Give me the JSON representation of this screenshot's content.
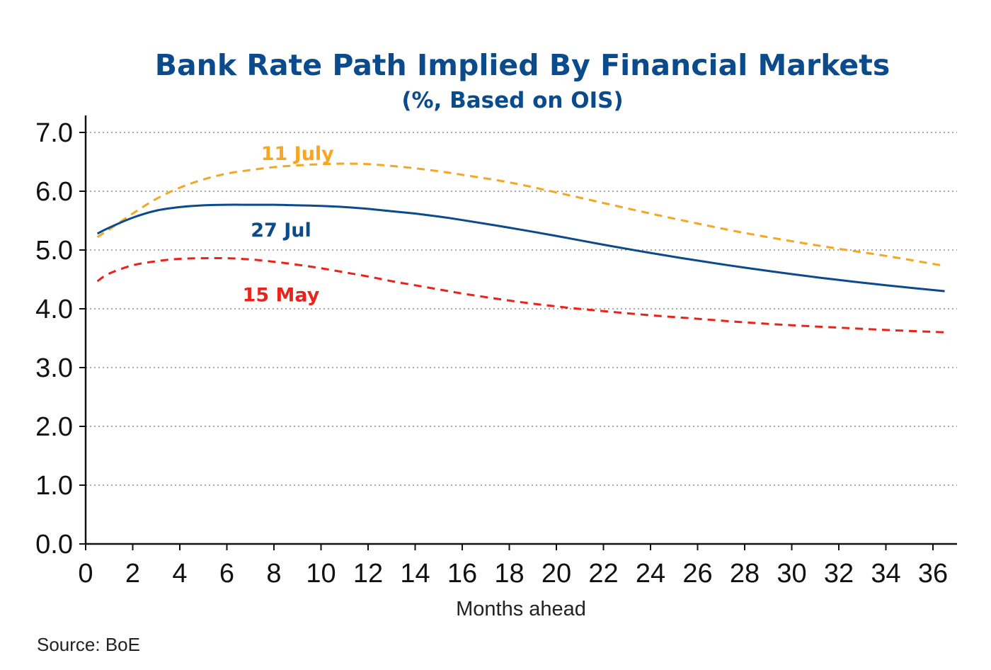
{
  "chart_data": {
    "type": "line",
    "title": "Bank Rate Path Implied By Financial Markets",
    "subtitle": "(%, Based on OIS)",
    "xlabel": "Months ahead",
    "ylabel": "",
    "xlim": [
      0,
      37
    ],
    "ylim": [
      0,
      7.3
    ],
    "x_ticks": [
      0,
      2,
      4,
      6,
      8,
      10,
      12,
      14,
      16,
      18,
      20,
      22,
      24,
      26,
      28,
      30,
      32,
      34,
      36
    ],
    "y_ticks": [
      0,
      1,
      2,
      3,
      4,
      5,
      6,
      7
    ],
    "y_tick_labels": [
      "0.0",
      "1.0",
      "2.0",
      "3.0",
      "4.0",
      "5.0",
      "6.0",
      "7.0"
    ],
    "grid": "horizontal-dotted",
    "source": "Source: BoE",
    "series": [
      {
        "name": "11 July",
        "color": "#f5a623",
        "style": "dashed",
        "label_anchor": {
          "x": 9.0,
          "y": 6.65
        },
        "x": [
          0.5,
          1,
          2,
          3,
          4,
          5,
          6,
          7,
          8,
          9,
          10,
          11,
          12,
          13,
          14,
          15,
          16,
          18,
          20,
          22,
          24,
          26,
          28,
          30,
          32,
          34,
          36.5
        ],
        "y": [
          5.22,
          5.35,
          5.62,
          5.87,
          6.06,
          6.2,
          6.3,
          6.36,
          6.41,
          6.44,
          6.46,
          6.47,
          6.46,
          6.43,
          6.39,
          6.34,
          6.28,
          6.15,
          5.98,
          5.8,
          5.62,
          5.45,
          5.29,
          5.15,
          5.02,
          4.9,
          4.73
        ]
      },
      {
        "name": "27 Jul",
        "color": "#0b4a8b",
        "style": "solid",
        "label_anchor": {
          "x": 8.3,
          "y": 5.35
        },
        "x": [
          0.5,
          1,
          2,
          3,
          4,
          5,
          6,
          7,
          8,
          9,
          10,
          11,
          12,
          13,
          14,
          15,
          16,
          18,
          20,
          22,
          24,
          26,
          28,
          30,
          32,
          34,
          36.5
        ],
        "y": [
          5.28,
          5.38,
          5.55,
          5.67,
          5.73,
          5.76,
          5.77,
          5.77,
          5.77,
          5.76,
          5.75,
          5.73,
          5.7,
          5.66,
          5.62,
          5.57,
          5.51,
          5.38,
          5.24,
          5.09,
          4.95,
          4.82,
          4.7,
          4.59,
          4.49,
          4.4,
          4.3
        ]
      },
      {
        "name": "15 May",
        "color": "#e8231b",
        "style": "dashed",
        "label_anchor": {
          "x": 8.3,
          "y": 4.25
        },
        "x": [
          0.5,
          1,
          2,
          3,
          4,
          5,
          6,
          7,
          8,
          9,
          10,
          11,
          12,
          13,
          14,
          15,
          16,
          18,
          20,
          22,
          24,
          26,
          28,
          30,
          32,
          34,
          36.5
        ],
        "y": [
          4.47,
          4.6,
          4.74,
          4.81,
          4.85,
          4.86,
          4.86,
          4.84,
          4.8,
          4.75,
          4.69,
          4.62,
          4.55,
          4.47,
          4.4,
          4.33,
          4.26,
          4.14,
          4.04,
          3.96,
          3.89,
          3.83,
          3.77,
          3.72,
          3.68,
          3.64,
          3.6
        ]
      }
    ]
  }
}
